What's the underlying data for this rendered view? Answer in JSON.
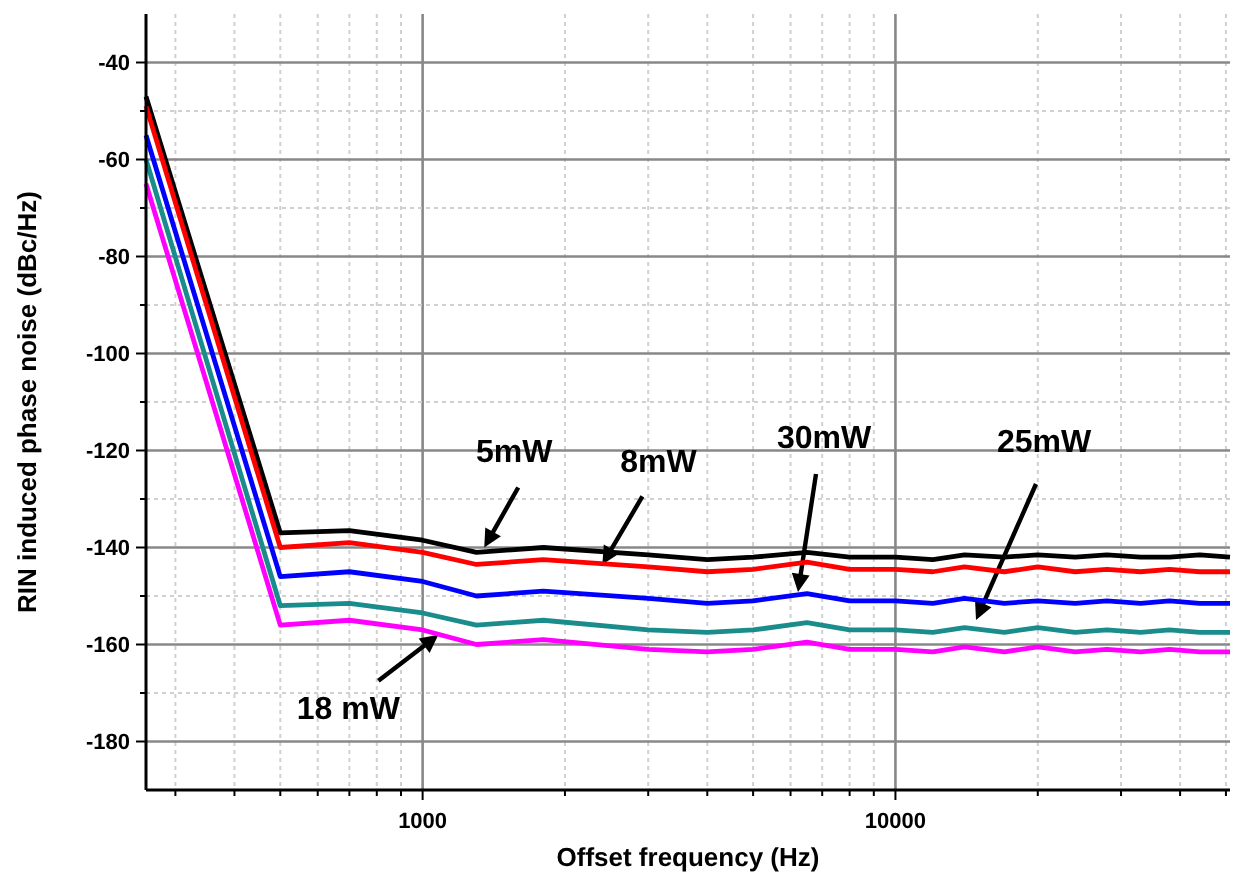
{
  "chart_data": {
    "type": "line",
    "xlabel": "Offset frequency (Hz)",
    "ylabel": "RIN induced phase noise (dBc/Hz)",
    "log": "x",
    "grid": true,
    "line_style": "solid",
    "marker": "none",
    "x": [
      260,
      500,
      700,
      1000,
      1300,
      1800,
      3000,
      4000,
      5000,
      6500,
      8000,
      10000,
      12000,
      14000,
      17000,
      20000,
      24000,
      28000,
      33000,
      38000,
      44000,
      51000
    ],
    "annotations": [
      {
        "text": "5mW",
        "x": 1350,
        "y": -140
      },
      {
        "text": "8mW",
        "x": 2400,
        "y": -143.5
      },
      "30mW",
      "25mW",
      {
        "text": "18 mW",
        "x": 1080,
        "y": -158
      }
    ],
    "xlim": [
      260,
      51000
    ],
    "ylim": [
      -190,
      -30
    ],
    "xticks": [
      {
        "value": 300,
        "label": null
      },
      {
        "value": 400,
        "label": null
      },
      {
        "value": 500,
        "label": null
      },
      {
        "value": 600,
        "label": null
      },
      {
        "value": 700,
        "label": null
      },
      {
        "value": 800,
        "label": null
      },
      {
        "value": 900,
        "label": null
      },
      1000,
      {
        "value": 2000,
        "label": null
      },
      {
        "value": 3000,
        "label": null
      },
      {
        "value": 4000,
        "label": null
      },
      {
        "value": 5000,
        "label": null
      },
      {
        "value": 6000,
        "label": null
      },
      {
        "value": 7000,
        "label": null
      },
      {
        "value": 8000,
        "label": null
      },
      {
        "value": 9000,
        "label": null
      },
      10000,
      {
        "value": 20000,
        "label": null
      },
      {
        "value": 30000,
        "label": null
      },
      {
        "value": 40000,
        "label": null
      },
      {
        "value": 50000,
        "label": null
      }
    ],
    "yticks": [
      -180,
      {
        "value": -170,
        "label": null
      },
      -160,
      {
        "value": -150,
        "label": null
      },
      -140,
      {
        "value": -130,
        "label": null
      },
      -120,
      {
        "value": -110,
        "label": null
      },
      -100,
      {
        "value": -90,
        "label": null
      },
      -80,
      {
        "value": -70,
        "label": null
      },
      -60,
      {
        "value": -50,
        "label": null
      },
      -40
    ],
    "series": [
      {
        "color": "#000000",
        "values": [
          -47,
          -137,
          -136.5,
          -138.5,
          -141,
          -140,
          -141.5,
          -142.5,
          -142,
          -141,
          -142,
          -142,
          -142.5,
          -141.5,
          -142,
          -141.5,
          -142,
          -141.5,
          -142,
          -142,
          -141.5,
          -142
        ]
      },
      {
        "color": "#ff0000",
        "values": [
          -49,
          -140,
          -139,
          -141,
          -143.5,
          -142.5,
          -144,
          -145,
          -144.5,
          -143,
          -144.5,
          -144.5,
          -145,
          -144,
          -145,
          -144,
          -145,
          -144.5,
          -145,
          -144.5,
          -145,
          -145
        ]
      },
      {
        "color": "#0000ff",
        "values": [
          -55,
          -146,
          -145,
          -147,
          -150,
          -149,
          -150.5,
          -151.5,
          -151,
          -149.5,
          -151,
          -151,
          -151.5,
          -150.5,
          -151.5,
          -151,
          -151.5,
          -151,
          -151.5,
          -151,
          -151.5,
          -151.5
        ]
      },
      {
        "color": "#1a8c8c",
        "values": [
          -60,
          -152,
          -151.5,
          -153.5,
          -156,
          -155,
          -157,
          -157.5,
          -157,
          -155.5,
          -157,
          -157,
          -157.5,
          -156.5,
          -157.5,
          -156.5,
          -157.5,
          -157,
          -157.5,
          -157,
          -157.5,
          -157.5
        ]
      },
      {
        "color": "#ff00ff",
        "values": [
          -65,
          -156,
          -155,
          -157,
          -160,
          -159,
          -161,
          -161.5,
          -161,
          -159.5,
          -161,
          -161,
          -161.5,
          -160.5,
          -161.5,
          -160.5,
          -161.5,
          -161,
          -161.5,
          -161,
          -161.5,
          -161.5
        ]
      }
    ]
  }
}
